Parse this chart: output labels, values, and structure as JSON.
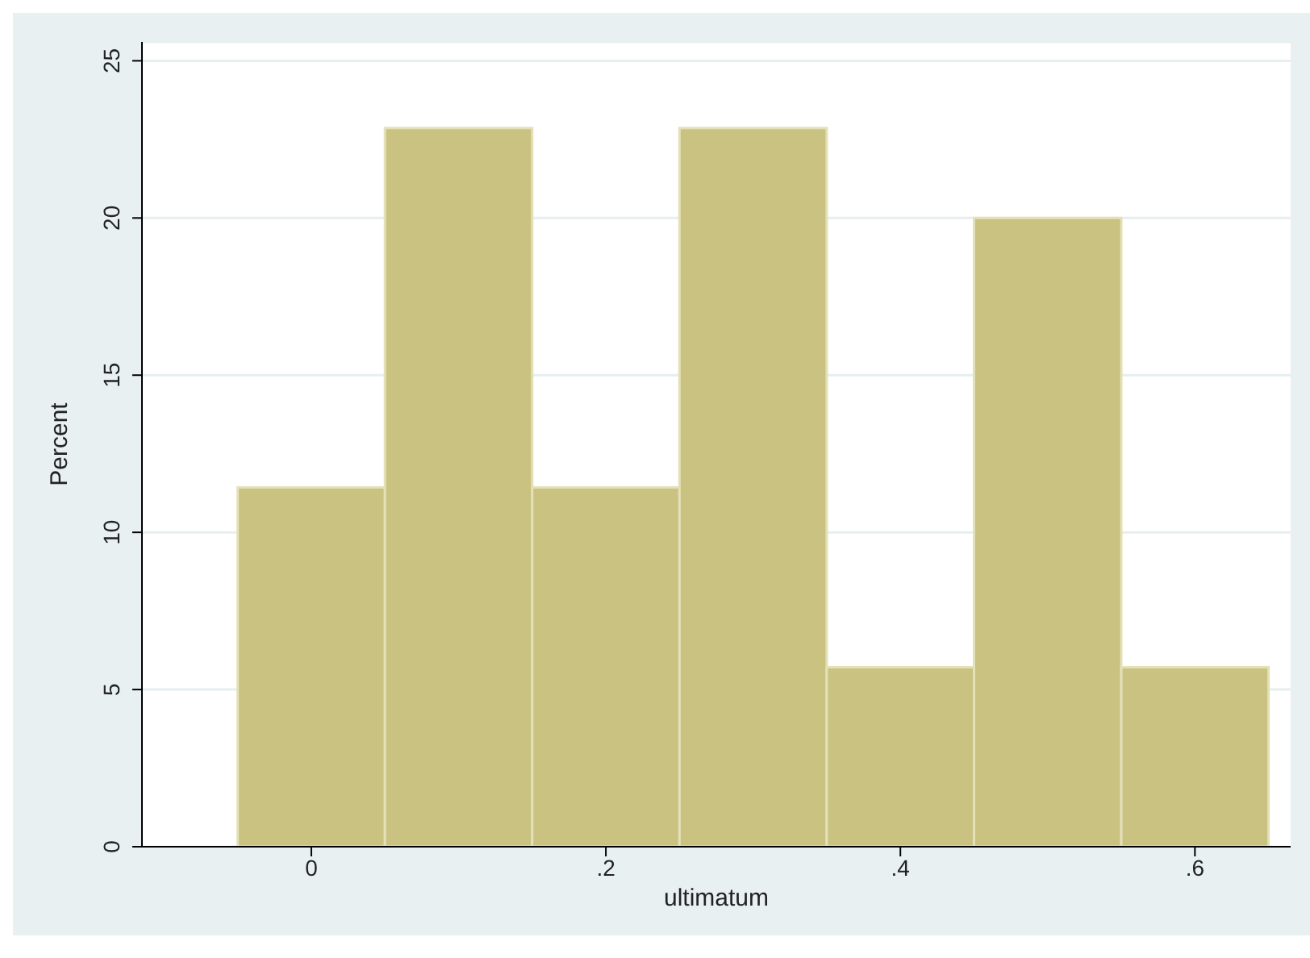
{
  "chart_data": {
    "type": "histogram",
    "xlabel": "ultimatum",
    "ylabel": "Percent",
    "bins": [
      -0.05,
      0.05,
      0.15,
      0.25,
      0.35,
      0.45,
      0.55,
      0.65
    ],
    "values": [
      11.43,
      22.86,
      11.43,
      22.86,
      5.71,
      20,
      5.71
    ],
    "color": "#c9c281",
    "xlim": [
      -0.115,
      0.665
    ],
    "xticks": [
      0,
      {
        "value": 0.2,
        "label": ".2"
      },
      {
        "value": 0.4,
        "label": ".4"
      },
      {
        "value": 0.6,
        "label": ".6"
      }
    ],
    "ylim": [
      0,
      25.6
    ],
    "yticks": [
      0,
      5,
      10,
      15,
      20,
      25
    ],
    "grid": "y"
  }
}
